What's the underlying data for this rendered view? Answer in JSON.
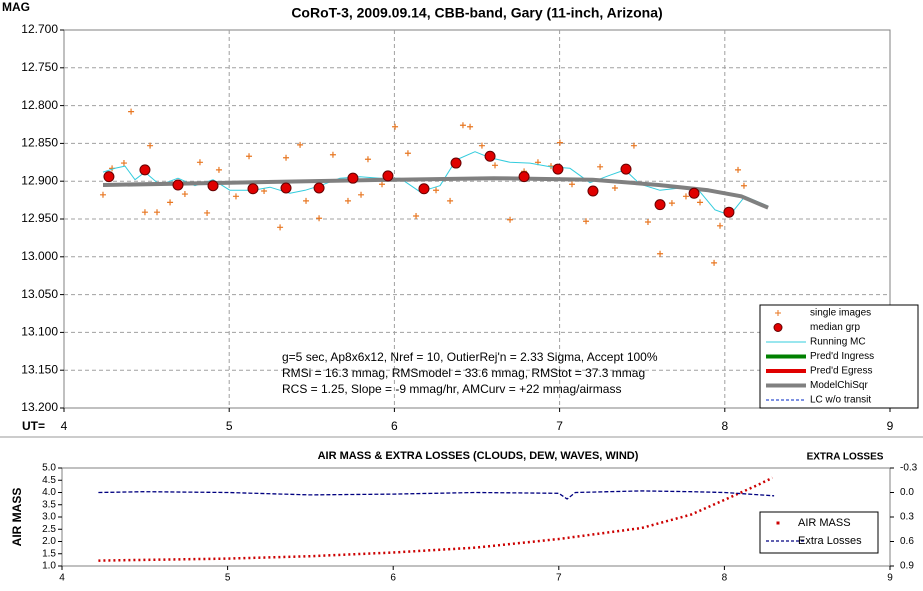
{
  "chart_data": [
    {
      "type": "line",
      "title": "CoRoT-3, 2009.09.14, CBB-band, Gary (11-inch, Arizona)",
      "ylabel": "MAG",
      "xlabel": "UT=",
      "xlim": [
        4,
        9
      ],
      "xticks": [
        4,
        5,
        6,
        7,
        8,
        9
      ],
      "ylim": [
        13.2,
        12.7
      ],
      "yticks": [
        {
          "value": 12.7,
          "label": "12.700"
        },
        {
          "value": 12.75,
          "label": "12.750"
        },
        {
          "value": 12.8,
          "label": "12.800"
        },
        {
          "value": 12.85,
          "label": "12.850"
        },
        {
          "value": 12.9,
          "label": "12.900"
        },
        {
          "value": 12.95,
          "label": "12.950"
        },
        {
          "value": 13.0,
          "label": "13.000"
        },
        {
          "value": 13.05,
          "label": "13.050"
        },
        {
          "value": 13.1,
          "label": "13.100"
        },
        {
          "value": 13.15,
          "label": "13.150"
        },
        {
          "value": 13.2,
          "label": "13.200"
        }
      ],
      "grid": true,
      "annotations": [
        "g=5 sec, Ap8x6x12, Nref = 10, OutierRej'n = 2.33 Sigma, Accept 100%",
        "RMSi = 16.3 mmag, RMSmodel = 33.6 mmag, RMStot = 37.3 mmag",
        "RCS = 1.25, Slope = -9 mmag/hr, AMCurv = +22 mmag/airmass"
      ],
      "series": [
        {
          "name": "single images",
          "color": "#e87722",
          "style": "plus",
          "x": [
            4.236,
            4.291,
            4.363,
            4.406,
            4.49,
            4.521,
            4.563,
            4.642,
            4.732,
            4.823,
            4.866,
            4.938,
            5.041,
            5.12,
            5.211,
            5.308,
            5.344,
            5.429,
            5.465,
            5.544,
            5.628,
            5.719,
            5.798,
            5.84,
            5.925,
            6.004,
            6.082,
            6.131,
            6.252,
            6.337,
            6.415,
            6.458,
            6.53,
            6.609,
            6.7,
            6.785,
            6.869,
            6.948,
            7.002,
            7.075,
            7.16,
            7.245,
            7.335,
            7.45,
            7.535,
            7.608,
            7.68,
            7.765,
            7.85,
            7.935,
            7.971,
            8.08,
            8.116
          ],
          "values": [
            12.918,
            12.883,
            12.876,
            12.808,
            12.941,
            12.853,
            12.941,
            12.928,
            12.917,
            12.875,
            12.942,
            12.885,
            12.92,
            12.867,
            12.913,
            12.961,
            12.869,
            12.852,
            12.926,
            12.949,
            12.865,
            12.926,
            12.918,
            12.871,
            12.904,
            12.828,
            12.863,
            12.946,
            12.912,
            12.926,
            12.826,
            12.828,
            12.853,
            12.879,
            12.951,
            12.887,
            12.875,
            12.88,
            12.849,
            12.904,
            12.953,
            12.881,
            12.909,
            12.853,
            12.954,
            12.996,
            12.929,
            12.92,
            12.928,
            13.008,
            12.959,
            12.885,
            12.906
          ]
        },
        {
          "name": "median grp",
          "color": "#e00000",
          "style": "dot",
          "x": [
            4.272,
            4.49,
            4.69,
            4.902,
            5.144,
            5.344,
            5.544,
            5.749,
            5.961,
            6.179,
            6.373,
            6.579,
            6.785,
            6.99,
            7.202,
            7.402,
            7.608,
            7.814,
            8.025
          ],
          "values": [
            12.894,
            12.885,
            12.905,
            12.906,
            12.91,
            12.909,
            12.909,
            12.896,
            12.893,
            12.91,
            12.876,
            12.867,
            12.894,
            12.884,
            12.913,
            12.884,
            12.931,
            12.916,
            12.941
          ]
        },
        {
          "name": "Running MC",
          "color": "#33ccdd",
          "style": "line",
          "x": [
            4.236,
            4.309,
            4.369,
            4.43,
            4.49,
            4.581,
            4.69,
            4.793,
            4.902,
            5.005,
            5.144,
            5.247,
            5.368,
            5.459,
            5.55,
            5.671,
            5.792,
            5.913,
            6.034,
            6.155,
            6.276,
            6.373,
            6.488,
            6.579,
            6.7,
            6.821,
            6.942,
            7.063,
            7.184,
            7.305,
            7.396,
            7.487,
            7.608,
            7.729,
            7.85,
            7.941,
            8.031,
            8.122,
            8.262
          ],
          "values": [
            12.888,
            12.883,
            12.88,
            12.898,
            12.888,
            12.905,
            12.896,
            12.906,
            12.898,
            12.912,
            12.912,
            12.908,
            12.916,
            12.912,
            12.906,
            12.896,
            12.894,
            12.896,
            12.896,
            12.914,
            12.906,
            12.872,
            12.861,
            12.869,
            12.875,
            12.876,
            12.881,
            12.883,
            12.902,
            12.892,
            12.885,
            12.904,
            12.912,
            12.909,
            12.914,
            12.938,
            12.945,
            12.92,
            12.933
          ]
        },
        {
          "name": "Pred'd Ingress",
          "color": "#008000",
          "style": "thick",
          "x": [],
          "values": []
        },
        {
          "name": "Pred'd Egress",
          "color": "#e00000",
          "style": "thick",
          "x": [],
          "values": []
        },
        {
          "name": "ModelChiSqr",
          "color": "#808080",
          "style": "thick",
          "x": [
            4.236,
            5.0,
            6.0,
            6.6,
            7.2,
            7.6,
            7.9,
            8.1,
            8.262
          ],
          "values": [
            12.905,
            12.902,
            12.898,
            12.896,
            12.898,
            12.905,
            12.912,
            12.92,
            12.935
          ]
        },
        {
          "name": "LC w/o transit",
          "color": "#3050d0",
          "style": "dashed",
          "x": [],
          "values": []
        }
      ]
    },
    {
      "type": "line",
      "title": "AIR MASS & EXTRA LOSSES (CLOUDS, DEW, WAVES, WIND)",
      "ylabel": "AIR MASS",
      "y2label": "EXTRA LOSSES",
      "xlim": [
        4,
        9
      ],
      "xticks": [
        4,
        5,
        6,
        7,
        8,
        9
      ],
      "ylim": [
        1,
        5
      ],
      "yticks": [
        {
          "value": 1,
          "label": "1.0"
        },
        1.5,
        {
          "value": 2,
          "label": "2.0"
        },
        2.5,
        {
          "value": 3,
          "label": "3.0"
        },
        3.5,
        {
          "value": 4,
          "label": "4.0"
        },
        4.5,
        {
          "value": 5,
          "label": "5.0"
        }
      ],
      "y2lim": [
        0.9,
        -0.3
      ],
      "y2ticks": [
        -0.3,
        {
          "value": 0,
          "label": "0.0"
        },
        0.3,
        0.6,
        0.9
      ],
      "grid": false,
      "series": [
        {
          "name": "AIR MASS",
          "color": "#cc0000",
          "style": "dotted",
          "x": [
            4.22,
            5.0,
            5.5,
            6.0,
            6.5,
            7.0,
            7.5,
            7.8,
            8.0,
            8.2,
            8.29
          ],
          "values": [
            1.22,
            1.3,
            1.4,
            1.55,
            1.75,
            2.1,
            2.55,
            3.1,
            3.7,
            4.3,
            4.6
          ]
        },
        {
          "name": "Extra Losses",
          "color": "#000080",
          "style": "dashed",
          "axis": "y2",
          "x": [
            4.22,
            4.5,
            5.0,
            5.5,
            6.0,
            6.5,
            7.0,
            7.05,
            7.1,
            7.5,
            7.8,
            8.0,
            8.3
          ],
          "values": [
            0.0,
            -0.01,
            0.0,
            0.03,
            0.02,
            0.0,
            0.01,
            0.08,
            0.0,
            -0.02,
            -0.01,
            0.0,
            0.04
          ]
        }
      ]
    }
  ]
}
